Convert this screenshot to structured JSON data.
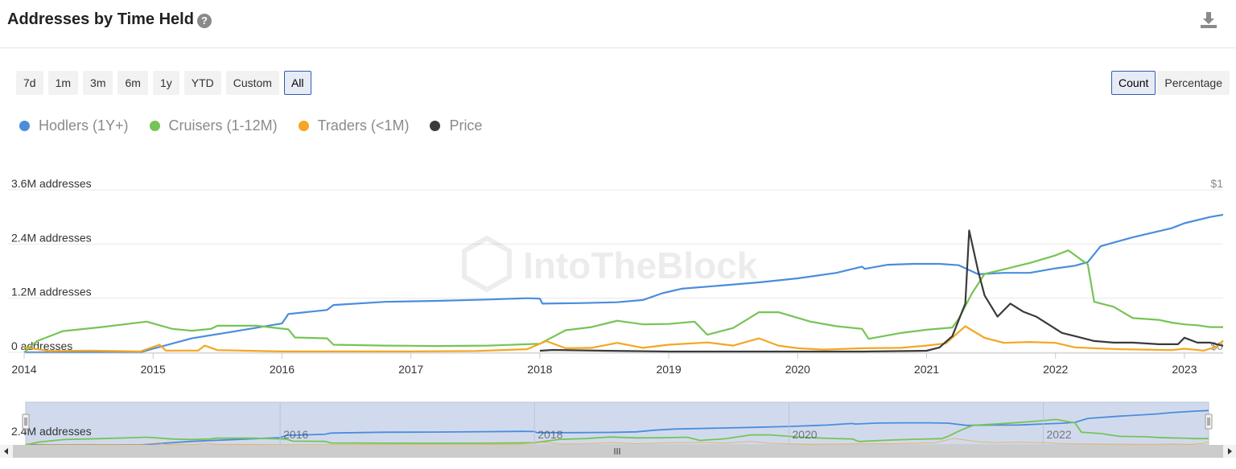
{
  "header": {
    "title": "Addresses by Time Held",
    "help_icon": "help-icon",
    "download_icon": "download-icon"
  },
  "ranges": [
    "7d",
    "1m",
    "3m",
    "6m",
    "1y",
    "YTD",
    "Custom",
    "All"
  ],
  "active_range": "All",
  "modes": [
    "Count",
    "Percentage"
  ],
  "active_mode": "Count",
  "watermark": "IntoTheBlock",
  "chart_data": {
    "type": "line",
    "title": "Addresses by Time Held",
    "x_unit": "year",
    "x_ticks": [
      "2014",
      "2015",
      "2016",
      "2017",
      "2018",
      "2019",
      "2020",
      "2021",
      "2022",
      "2023"
    ],
    "y_left_ticks": [
      "0 addresses",
      "1.2M addresses",
      "2.4M addresses",
      "3.6M addresses"
    ],
    "y_left_range": [
      0,
      3600000
    ],
    "y_right_ticks": [
      "$0",
      "$1"
    ],
    "y_right_range": [
      0,
      1
    ],
    "legend_position": "top-left",
    "series": [
      {
        "name": "Hodlers (1Y+)",
        "color": "#4a8ddc",
        "axis": "left",
        "points": [
          [
            2014.0,
            0
          ],
          [
            2014.9,
            0
          ],
          [
            2015.0,
            80000
          ],
          [
            2015.3,
            310000
          ],
          [
            2015.6,
            450000
          ],
          [
            2016.0,
            640000
          ],
          [
            2016.05,
            850000
          ],
          [
            2016.35,
            940000
          ],
          [
            2016.4,
            1050000
          ],
          [
            2016.8,
            1120000
          ],
          [
            2017.2,
            1140000
          ],
          [
            2017.6,
            1170000
          ],
          [
            2017.9,
            1200000
          ],
          [
            2018.0,
            1190000
          ],
          [
            2018.02,
            1080000
          ],
          [
            2018.3,
            1090000
          ],
          [
            2018.6,
            1110000
          ],
          [
            2018.8,
            1160000
          ],
          [
            2018.95,
            1310000
          ],
          [
            2019.1,
            1410000
          ],
          [
            2019.4,
            1480000
          ],
          [
            2019.7,
            1550000
          ],
          [
            2020.0,
            1640000
          ],
          [
            2020.3,
            1760000
          ],
          [
            2020.5,
            1900000
          ],
          [
            2020.52,
            1850000
          ],
          [
            2020.7,
            1940000
          ],
          [
            2020.9,
            1960000
          ],
          [
            2021.1,
            1960000
          ],
          [
            2021.25,
            1930000
          ],
          [
            2021.4,
            1730000
          ],
          [
            2021.6,
            1760000
          ],
          [
            2021.8,
            1760000
          ],
          [
            2022.0,
            1860000
          ],
          [
            2022.15,
            1920000
          ],
          [
            2022.25,
            2000000
          ],
          [
            2022.35,
            2350000
          ],
          [
            2022.6,
            2550000
          ],
          [
            2022.9,
            2750000
          ],
          [
            2023.0,
            2860000
          ],
          [
            2023.2,
            3000000
          ],
          [
            2023.3,
            3050000
          ]
        ]
      },
      {
        "name": "Cruisers (1-12M)",
        "color": "#76c455",
        "axis": "left",
        "points": [
          [
            2014.0,
            0
          ],
          [
            2014.1,
            250000
          ],
          [
            2014.3,
            470000
          ],
          [
            2014.6,
            560000
          ],
          [
            2014.95,
            680000
          ],
          [
            2015.15,
            520000
          ],
          [
            2015.3,
            480000
          ],
          [
            2015.45,
            520000
          ],
          [
            2015.5,
            590000
          ],
          [
            2015.8,
            590000
          ],
          [
            2016.05,
            510000
          ],
          [
            2016.1,
            330000
          ],
          [
            2016.35,
            310000
          ],
          [
            2016.4,
            170000
          ],
          [
            2016.8,
            150000
          ],
          [
            2017.2,
            140000
          ],
          [
            2017.6,
            150000
          ],
          [
            2017.9,
            180000
          ],
          [
            2018.0,
            190000
          ],
          [
            2018.2,
            490000
          ],
          [
            2018.4,
            560000
          ],
          [
            2018.6,
            700000
          ],
          [
            2018.8,
            620000
          ],
          [
            2019.0,
            630000
          ],
          [
            2019.2,
            680000
          ],
          [
            2019.3,
            390000
          ],
          [
            2019.5,
            540000
          ],
          [
            2019.7,
            890000
          ],
          [
            2019.85,
            890000
          ],
          [
            2020.1,
            680000
          ],
          [
            2020.3,
            580000
          ],
          [
            2020.5,
            520000
          ],
          [
            2020.55,
            300000
          ],
          [
            2020.8,
            430000
          ],
          [
            2021.0,
            500000
          ],
          [
            2021.2,
            550000
          ],
          [
            2021.25,
            750000
          ],
          [
            2021.35,
            1300000
          ],
          [
            2021.45,
            1740000
          ],
          [
            2021.6,
            1840000
          ],
          [
            2021.8,
            1980000
          ],
          [
            2022.0,
            2150000
          ],
          [
            2022.1,
            2260000
          ],
          [
            2022.2,
            2050000
          ],
          [
            2022.25,
            1950000
          ],
          [
            2022.3,
            1120000
          ],
          [
            2022.45,
            1010000
          ],
          [
            2022.6,
            760000
          ],
          [
            2022.8,
            720000
          ],
          [
            2022.9,
            660000
          ],
          [
            2023.0,
            620000
          ],
          [
            2023.1,
            600000
          ],
          [
            2023.2,
            560000
          ],
          [
            2023.3,
            560000
          ]
        ]
      },
      {
        "name": "Traders (<1M)",
        "color": "#f5a623",
        "axis": "left",
        "points": [
          [
            2014.0,
            110000
          ],
          [
            2014.2,
            30000
          ],
          [
            2014.5,
            40000
          ],
          [
            2014.9,
            20000
          ],
          [
            2015.05,
            170000
          ],
          [
            2015.1,
            40000
          ],
          [
            2015.35,
            40000
          ],
          [
            2015.4,
            150000
          ],
          [
            2015.5,
            50000
          ],
          [
            2016.0,
            20000
          ],
          [
            2016.5,
            20000
          ],
          [
            2017.0,
            20000
          ],
          [
            2017.5,
            30000
          ],
          [
            2017.9,
            70000
          ],
          [
            2018.05,
            250000
          ],
          [
            2018.2,
            90000
          ],
          [
            2018.4,
            100000
          ],
          [
            2018.6,
            210000
          ],
          [
            2018.8,
            100000
          ],
          [
            2019.0,
            170000
          ],
          [
            2019.3,
            220000
          ],
          [
            2019.5,
            150000
          ],
          [
            2019.7,
            310000
          ],
          [
            2019.85,
            150000
          ],
          [
            2020.0,
            90000
          ],
          [
            2020.2,
            60000
          ],
          [
            2020.5,
            90000
          ],
          [
            2020.8,
            100000
          ],
          [
            2021.0,
            150000
          ],
          [
            2021.15,
            200000
          ],
          [
            2021.3,
            580000
          ],
          [
            2021.45,
            320000
          ],
          [
            2021.6,
            210000
          ],
          [
            2021.8,
            230000
          ],
          [
            2022.0,
            210000
          ],
          [
            2022.15,
            110000
          ],
          [
            2022.3,
            90000
          ],
          [
            2022.5,
            70000
          ],
          [
            2022.7,
            60000
          ],
          [
            2022.9,
            50000
          ],
          [
            2023.0,
            80000
          ],
          [
            2023.15,
            40000
          ],
          [
            2023.25,
            130000
          ],
          [
            2023.3,
            260000
          ]
        ]
      },
      {
        "name": "Price",
        "color": "#3a3a3a",
        "axis": "right",
        "points": [
          [
            2018.0,
            0.01
          ],
          [
            2018.1,
            0.015
          ],
          [
            2018.5,
            0.01
          ],
          [
            2019.0,
            0.005
          ],
          [
            2019.5,
            0.005
          ],
          [
            2020.0,
            0.005
          ],
          [
            2020.5,
            0.005
          ],
          [
            2021.0,
            0.01
          ],
          [
            2021.1,
            0.03
          ],
          [
            2021.2,
            0.1
          ],
          [
            2021.3,
            0.3
          ],
          [
            2021.33,
            0.75
          ],
          [
            2021.4,
            0.5
          ],
          [
            2021.45,
            0.35
          ],
          [
            2021.55,
            0.22
          ],
          [
            2021.65,
            0.3
          ],
          [
            2021.75,
            0.25
          ],
          [
            2021.85,
            0.22
          ],
          [
            2021.95,
            0.17
          ],
          [
            2022.05,
            0.12
          ],
          [
            2022.15,
            0.1
          ],
          [
            2022.3,
            0.07
          ],
          [
            2022.45,
            0.06
          ],
          [
            2022.6,
            0.06
          ],
          [
            2022.8,
            0.05
          ],
          [
            2022.95,
            0.05
          ],
          [
            2023.0,
            0.09
          ],
          [
            2023.1,
            0.06
          ],
          [
            2023.2,
            0.06
          ],
          [
            2023.3,
            0.04
          ]
        ]
      }
    ]
  }
}
